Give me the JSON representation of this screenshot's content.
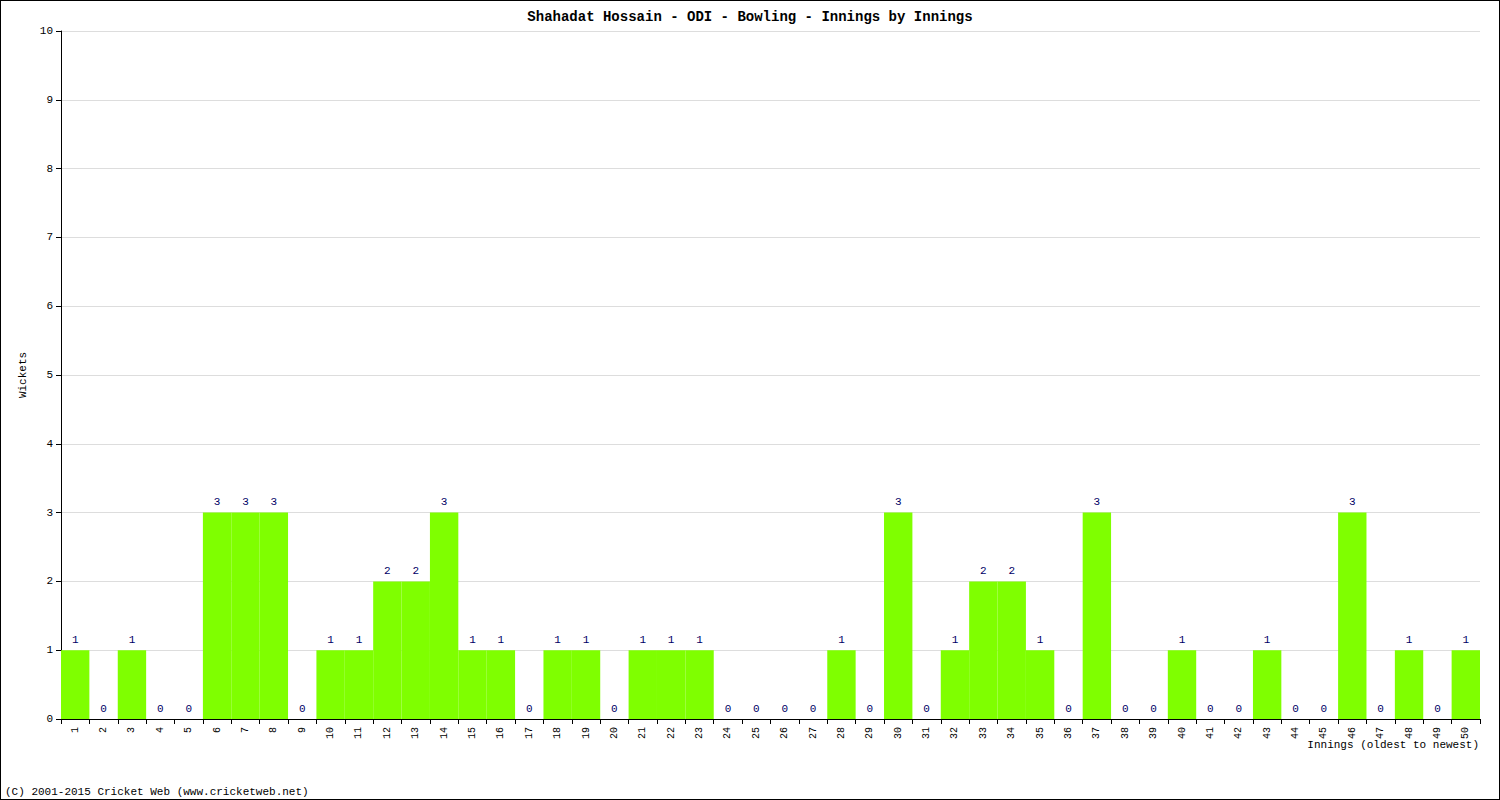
{
  "chart_data": {
    "type": "bar",
    "title": "Shahadat Hossain - ODI - Bowling - Innings by Innings",
    "x_label": "Innings (oldest to newest)",
    "y_label": "Wickets",
    "annotations": [
      "(C) 2001-2015 Cricket Web (www.cricketweb.net)"
    ],
    "categories": [
      "1",
      "2",
      "3",
      "4",
      "5",
      "6",
      "7",
      "8",
      "9",
      "10",
      "11",
      "12",
      "13",
      "14",
      "15",
      "16",
      "17",
      "18",
      "19",
      "20",
      "21",
      "22",
      "23",
      "24",
      "25",
      "26",
      "27",
      "28",
      "29",
      "30",
      "31",
      "32",
      "33",
      "34",
      "35",
      "36",
      "37",
      "38",
      "39",
      "40",
      "41",
      "42",
      "43",
      "44",
      "45",
      "46",
      "47",
      "48",
      "49",
      "50"
    ],
    "values": [
      1,
      0,
      1,
      0,
      0,
      3,
      3,
      3,
      0,
      1,
      1,
      2,
      2,
      3,
      1,
      1,
      0,
      1,
      1,
      0,
      1,
      1,
      1,
      0,
      0,
      0,
      0,
      1,
      0,
      3,
      0,
      1,
      2,
      2,
      1,
      0,
      3,
      0,
      0,
      1,
      0,
      0,
      1,
      0,
      0,
      3,
      0,
      1,
      0,
      1
    ],
    "color": "#7fff00",
    "ylim": [
      0,
      10
    ],
    "yticks": [
      0,
      1,
      2,
      3,
      4,
      5,
      6,
      7,
      8,
      9,
      10
    ],
    "grid": true,
    "data_labels": true
  }
}
